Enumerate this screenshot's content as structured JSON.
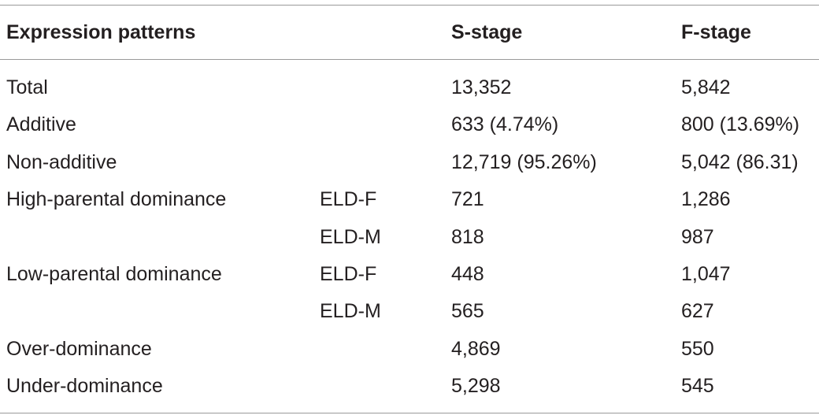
{
  "table": {
    "headers": [
      "Expression patterns",
      "",
      "S-stage",
      "F-stage"
    ],
    "rows": [
      [
        "Total",
        "",
        "13,352",
        "5,842"
      ],
      [
        "Additive",
        "",
        "633 (4.74%)",
        "800 (13.69%)"
      ],
      [
        "Non-additive",
        "",
        "12,719 (95.26%)",
        "5,042 (86.31)"
      ],
      [
        "High-parental dominance",
        "ELD-F",
        "721",
        "1,286"
      ],
      [
        "",
        "ELD-M",
        "818",
        "987"
      ],
      [
        "Low-parental dominance",
        "ELD-F",
        "448",
        "1,047"
      ],
      [
        "",
        "ELD-M",
        "565",
        "627"
      ],
      [
        "Over-dominance",
        "",
        "4,869",
        "550"
      ],
      [
        "Under-dominance",
        "",
        "5,298",
        "545"
      ]
    ]
  }
}
